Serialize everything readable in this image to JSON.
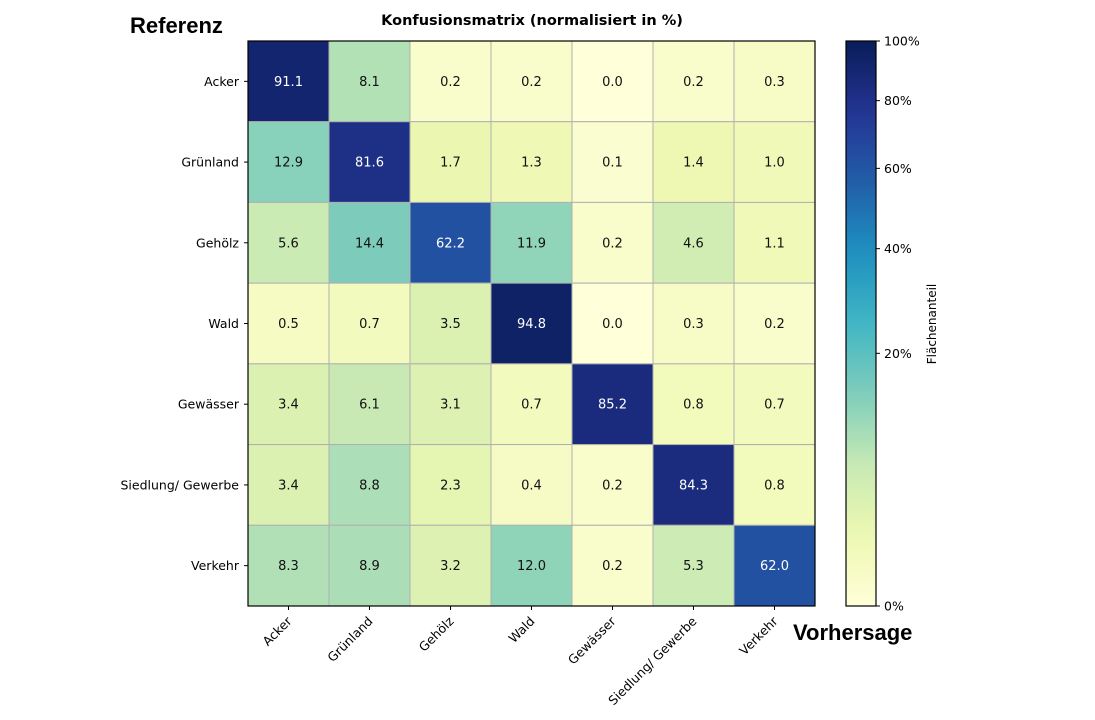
{
  "labels": {
    "y_axis": "Referenz",
    "x_axis": "Vorhersage"
  },
  "chart_data": {
    "type": "heatmap",
    "title": "Konfusionsmatrix (normalisiert in %)",
    "xlabel": "Vorhersage",
    "ylabel": "Referenz",
    "row_labels": [
      "Acker",
      "Grünland",
      "Gehölz",
      "Wald",
      "Gewässer",
      "Siedlung/ Gewerbe",
      "Verkehr"
    ],
    "col_labels": [
      "Acker",
      "Grünland",
      "Gehölz",
      "Wald",
      "Gewässer",
      "Siedlung/ Gewerbe",
      "Verkehr"
    ],
    "values": [
      [
        91.1,
        8.1,
        0.2,
        0.2,
        0.0,
        0.2,
        0.3
      ],
      [
        12.9,
        81.6,
        1.7,
        1.3,
        0.1,
        1.4,
        1.0
      ],
      [
        5.6,
        14.4,
        62.2,
        11.9,
        0.2,
        4.6,
        1.1
      ],
      [
        0.5,
        0.7,
        3.5,
        94.8,
        0.0,
        0.3,
        0.2
      ],
      [
        3.4,
        6.1,
        3.1,
        0.7,
        85.2,
        0.8,
        0.7
      ],
      [
        3.4,
        8.8,
        2.3,
        0.4,
        0.2,
        84.3,
        0.8
      ],
      [
        8.3,
        8.9,
        3.2,
        12.0,
        0.2,
        5.3,
        62.0
      ]
    ],
    "colormap": "YlGnBu",
    "colormap_stops": [
      "#ffffd9",
      "#edf8b1",
      "#c7e9b4",
      "#7fcdbb",
      "#41b6c4",
      "#1d91c0",
      "#225ea8",
      "#253494",
      "#081d58"
    ],
    "norm": "power 0.5",
    "vlim": [
      0,
      100
    ],
    "colorbar": {
      "label": "Flächenanteil",
      "ticks": [
        0,
        20,
        40,
        60,
        80,
        100
      ],
      "tick_labels": [
        "0%",
        "20%",
        "40%",
        "60%",
        "80%",
        "100%"
      ]
    },
    "grid_color": "#b0b0b0"
  }
}
